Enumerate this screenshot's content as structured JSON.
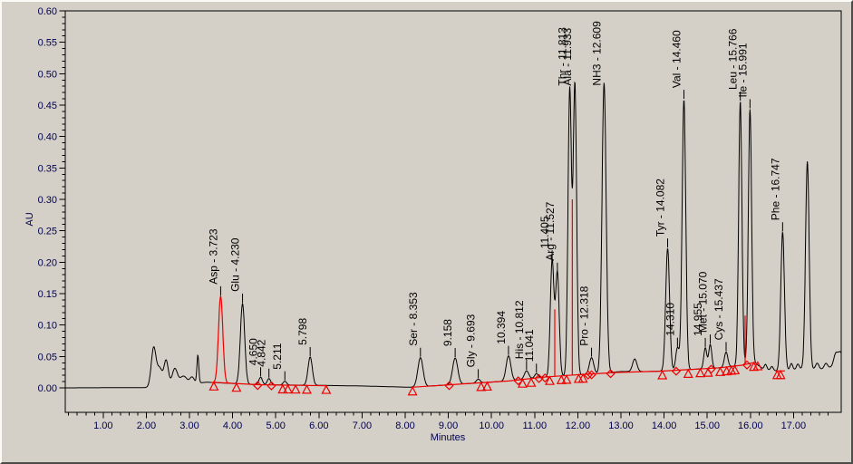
{
  "axes": {
    "x": {
      "title": "Minutes",
      "tick_labels": [
        "1.00",
        "2.00",
        "3.00",
        "4.00",
        "5.00",
        "6.00",
        "7.00",
        "8.00",
        "9.00",
        "10.00",
        "11.00",
        "12.00",
        "13.00",
        "14.00",
        "15.00",
        "16.00",
        "17.00"
      ],
      "major_step": 1.0,
      "minor_step": 0.2,
      "range": [
        0.12,
        18.11
      ]
    },
    "y": {
      "title": "AU",
      "tick_labels": [
        "0.00",
        "0.05",
        "0.10",
        "0.15",
        "0.20",
        "0.25",
        "0.30",
        "0.35",
        "0.40",
        "0.45",
        "0.50",
        "0.55",
        "0.60"
      ],
      "major_step": 0.05,
      "minor_step": 0.01,
      "range": [
        -0.039,
        0.6
      ]
    }
  },
  "chart_data": {
    "type": "line",
    "title": "",
    "xlabel": "Minutes",
    "ylabel": "AU",
    "xlim": [
      0.12,
      18.11
    ],
    "ylim": [
      -0.039,
      0.6
    ],
    "legend": "none",
    "grid": false,
    "series": [
      {
        "name": "chromatogram-trace",
        "color": "#000000"
      }
    ],
    "peaks": [
      {
        "label": "Asp - 3.723",
        "name": "Asp",
        "time": 3.723,
        "height": 0.138,
        "sigma": 0.05,
        "color": "red"
      },
      {
        "label": "Glu - 4.230",
        "name": "Glu",
        "time": 4.23,
        "height": 0.128,
        "sigma": 0.05,
        "color": "black"
      },
      {
        "label": "4.650",
        "time": 4.65,
        "height": 0.012,
        "sigma": 0.04,
        "color": "black"
      },
      {
        "label": "4.842",
        "time": 4.842,
        "height": 0.01,
        "sigma": 0.04,
        "color": "black"
      },
      {
        "label": "5.211",
        "time": 5.211,
        "height": 0.006,
        "sigma": 0.04,
        "color": "black"
      },
      {
        "label": "5.798",
        "time": 5.798,
        "height": 0.045,
        "sigma": 0.05,
        "color": "black"
      },
      {
        "label": "Ser - 8.353",
        "name": "Ser",
        "time": 8.353,
        "height": 0.046,
        "sigma": 0.06,
        "color": "black"
      },
      {
        "label": "9.158",
        "time": 9.158,
        "height": 0.042,
        "sigma": 0.06,
        "color": "black"
      },
      {
        "label": "Gly - 9.693",
        "name": "Gly",
        "time": 9.693,
        "height": 0.006,
        "sigma": 0.045,
        "color": "black"
      },
      {
        "label": "10.394",
        "time": 10.394,
        "height": 0.04,
        "sigma": 0.055,
        "color": "black"
      },
      {
        "label": "His - 10.812",
        "name": "His",
        "time": 10.812,
        "height": 0.013,
        "sigma": 0.05,
        "color": "black"
      },
      {
        "label": "11.041",
        "time": 11.041,
        "height": 0.007,
        "sigma": 0.04,
        "color": "black"
      },
      {
        "label": "11.405",
        "time": 11.405,
        "height": 0.185,
        "sigma": 0.042,
        "color": "black"
      },
      {
        "label": "Arg - 11.527",
        "name": "Arg",
        "time": 11.527,
        "height": 0.165,
        "sigma": 0.042,
        "color": "black"
      },
      {
        "label": "Thr - 11.813",
        "name": "Thr",
        "time": 11.813,
        "height": 0.455,
        "sigma": 0.04,
        "color": "black"
      },
      {
        "label": "Ala - 11.933",
        "name": "Ala",
        "time": 11.933,
        "height": 0.462,
        "sigma": 0.04,
        "color": "black"
      },
      {
        "label": "Pro - 12.318",
        "name": "Pro",
        "time": 12.318,
        "height": 0.026,
        "sigma": 0.05,
        "color": "black"
      },
      {
        "label": "NH3 - 12.609",
        "name": "NH3",
        "time": 12.609,
        "height": 0.462,
        "sigma": 0.048,
        "color": "black"
      },
      {
        "label": "Tyr - 14.082",
        "name": "Tyr",
        "time": 14.082,
        "height": 0.195,
        "sigma": 0.045,
        "color": "black"
      },
      {
        "label": "14.310",
        "time": 14.31,
        "height": 0.036,
        "sigma": 0.04,
        "color": "black"
      },
      {
        "label": "Val - 14.460",
        "name": "Val",
        "time": 14.46,
        "height": 0.43,
        "sigma": 0.042,
        "color": "black"
      },
      {
        "label": "14.955",
        "time": 14.955,
        "height": 0.033,
        "sigma": 0.035,
        "color": "black"
      },
      {
        "label": "Met - 15.070",
        "name": "Met",
        "time": 15.07,
        "height": 0.038,
        "sigma": 0.035,
        "color": "black"
      },
      {
        "label": "Cys - 15.437",
        "name": "Cys",
        "time": 15.437,
        "height": 0.024,
        "sigma": 0.04,
        "color": "black"
      },
      {
        "label": "Leu - 15.766",
        "name": "Leu",
        "time": 15.766,
        "height": 0.42,
        "sigma": 0.038,
        "color": "black"
      },
      {
        "label": "Ile - 15.991",
        "name": "Ile",
        "time": 15.991,
        "height": 0.405,
        "sigma": 0.038,
        "color": "black"
      },
      {
        "label": "Phe - 16.747",
        "name": "Phe",
        "time": 16.747,
        "height": 0.22,
        "sigma": 0.042,
        "color": "black"
      }
    ],
    "unlabeled_peaks": [
      {
        "time": 13.32,
        "height": 0.02,
        "sigma": 0.05
      },
      {
        "time": 16.35,
        "height": 0.008,
        "sigma": 0.03
      },
      {
        "time": 16.5,
        "height": 0.006,
        "sigma": 0.03
      },
      {
        "time": 16.95,
        "height": 0.01,
        "sigma": 0.03
      },
      {
        "time": 17.1,
        "height": 0.008,
        "sigma": 0.03
      },
      {
        "time": 17.32,
        "height": 0.33,
        "sigma": 0.042
      },
      {
        "time": 17.55,
        "height": 0.01,
        "sigma": 0.04
      },
      {
        "time": 17.75,
        "height": 0.008,
        "sigma": 0.04
      },
      {
        "time": 17.98,
        "height": 0.018,
        "sigma": 0.05
      },
      {
        "time": 18.08,
        "height": 0.012,
        "sigma": 0.04
      }
    ],
    "solvent_front_peaks": [
      {
        "time": 2.17,
        "height": 0.062,
        "sigma": 0.055
      },
      {
        "time": 2.31,
        "height": 0.028,
        "sigma": 0.06
      },
      {
        "time": 2.46,
        "height": 0.04,
        "sigma": 0.05
      },
      {
        "time": 2.66,
        "height": 0.026,
        "sigma": 0.06
      },
      {
        "time": 2.86,
        "height": 0.013,
        "sigma": 0.08
      },
      {
        "time": 3.06,
        "height": 0.01,
        "sigma": 0.05
      },
      {
        "time": 3.195,
        "height": 0.044,
        "sigma": 0.022
      }
    ],
    "baseline_drift": [
      [
        0.12,
        0
      ],
      [
        2.0,
        0.0005
      ],
      [
        3.4,
        0.009
      ],
      [
        4.6,
        0.005
      ],
      [
        6.0,
        0.004
      ],
      [
        7.0,
        0.003
      ],
      [
        8.1,
        0.001
      ],
      [
        8.6,
        0.003
      ],
      [
        9.5,
        0.007
      ],
      [
        10.4,
        0.011
      ],
      [
        11.2,
        0.017
      ],
      [
        11.9,
        0.02
      ],
      [
        12.5,
        0.023
      ],
      [
        13.0,
        0.026
      ],
      [
        13.6,
        0.026
      ],
      [
        14.1,
        0.027
      ],
      [
        14.8,
        0.03
      ],
      [
        15.3,
        0.032
      ],
      [
        15.8,
        0.036
      ],
      [
        16.1,
        0.04
      ],
      [
        16.3,
        0.03
      ],
      [
        16.6,
        0.027
      ],
      [
        17.0,
        0.029
      ],
      [
        17.2,
        0.031
      ],
      [
        17.6,
        0.029
      ],
      [
        17.9,
        0.033
      ],
      [
        18.11,
        0.045
      ]
    ],
    "integration": {
      "baseline_segments": [
        [
          [
            3.55,
            0.009
          ],
          [
            4.2,
            0.0065
          ],
          [
            4.6,
            0.005
          ],
          [
            5.5,
            0.004
          ],
          [
            6.18,
            0.0035
          ]
        ],
        [
          [
            8.15,
            0.001
          ],
          [
            9.5,
            0.007
          ],
          [
            10.4,
            0.011
          ],
          [
            11.2,
            0.017
          ],
          [
            11.9,
            0.0205
          ],
          [
            12.5,
            0.023
          ],
          [
            12.88,
            0.0245
          ],
          [
            13.9,
            0.0265
          ],
          [
            14.8,
            0.03
          ],
          [
            15.3,
            0.032
          ],
          [
            15.8,
            0.036
          ],
          [
            16.13,
            0.041
          ]
        ],
        [
          [
            16.58,
            0.027
          ],
          [
            16.8,
            0.027
          ]
        ]
      ],
      "drop_lines": [
        {
          "time": 11.466,
          "top": 0.125
        },
        {
          "time": 11.873,
          "top": 0.3
        },
        {
          "time": 15.878,
          "top": 0.115
        }
      ],
      "markers": [
        {
          "time": 3.565,
          "shape": "triangle"
        },
        {
          "time": 4.09,
          "shape": "triangle"
        },
        {
          "time": 4.58,
          "shape": "diamond"
        },
        {
          "time": 4.9,
          "shape": "diamond"
        },
        {
          "time": 5.16,
          "shape": "triangle"
        },
        {
          "time": 5.28,
          "shape": "triangle"
        },
        {
          "time": 5.46,
          "shape": "triangle"
        },
        {
          "time": 5.72,
          "shape": "triangle"
        },
        {
          "time": 6.17,
          "shape": "triangle"
        },
        {
          "time": 8.17,
          "shape": "triangle"
        },
        {
          "time": 9.02,
          "shape": "diamond"
        },
        {
          "time": 9.76,
          "shape": "triangle"
        },
        {
          "time": 9.9,
          "shape": "triangle"
        },
        {
          "time": 10.62,
          "shape": "diamond"
        },
        {
          "time": 10.72,
          "shape": "triangle"
        },
        {
          "time": 10.92,
          "shape": "triangle"
        },
        {
          "time": 11.1,
          "shape": "diamond"
        },
        {
          "time": 11.24,
          "shape": "diamond"
        },
        {
          "time": 11.35,
          "shape": "triangle"
        },
        {
          "time": 11.62,
          "shape": "triangle"
        },
        {
          "time": 11.74,
          "shape": "triangle"
        },
        {
          "time": 12.02,
          "shape": "triangle"
        },
        {
          "time": 12.12,
          "shape": "triangle"
        },
        {
          "time": 12.24,
          "shape": "diamond"
        },
        {
          "time": 12.32,
          "shape": "diamond"
        },
        {
          "time": 12.76,
          "shape": "diamond"
        },
        {
          "time": 13.96,
          "shape": "triangle"
        },
        {
          "time": 14.28,
          "shape": "diamond"
        },
        {
          "time": 14.56,
          "shape": "triangle"
        },
        {
          "time": 14.84,
          "shape": "triangle"
        },
        {
          "time": 15.02,
          "shape": "triangle"
        },
        {
          "time": 15.09,
          "shape": "diamond"
        },
        {
          "time": 15.3,
          "shape": "triangle"
        },
        {
          "time": 15.45,
          "shape": "triangle"
        },
        {
          "time": 15.56,
          "shape": "triangle"
        },
        {
          "time": 15.64,
          "shape": "triangle"
        },
        {
          "time": 15.92,
          "shape": "diamond"
        },
        {
          "time": 16.08,
          "shape": "triangle"
        },
        {
          "time": 16.17,
          "shape": "triangle"
        },
        {
          "time": 16.62,
          "shape": "triangle"
        },
        {
          "time": 16.7,
          "shape": "triangle"
        }
      ]
    }
  },
  "colors": {
    "background": "#d4d0c8",
    "frame": "#000000",
    "trace": "#000000",
    "overlay_red": "#ee0000",
    "axis_text": "#000050",
    "peak_label_text": "#000000"
  }
}
